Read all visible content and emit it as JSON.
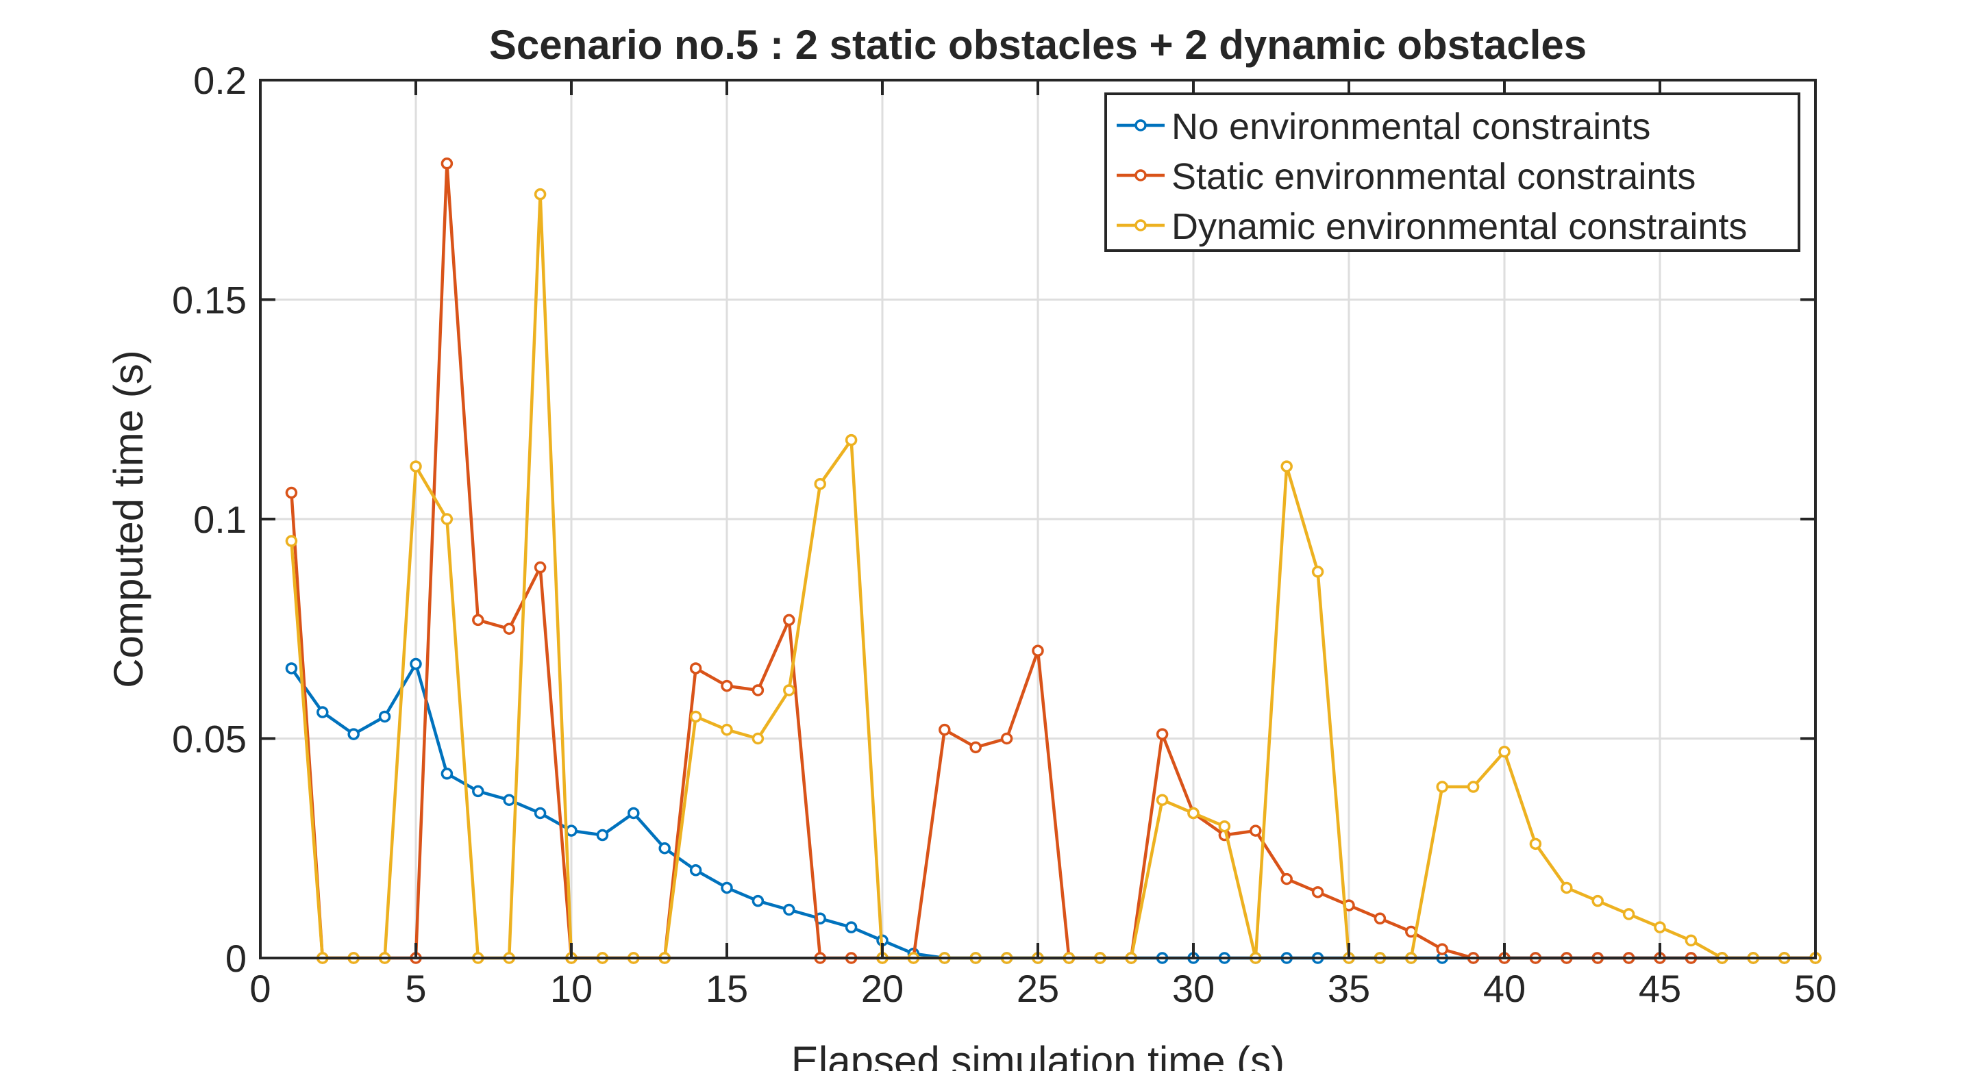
{
  "chart_data": {
    "type": "line",
    "title": "Scenario no.5 : 2 static obstacles + 2 dynamic obstacles",
    "xlabel": "Elapsed simulation time (s)",
    "ylabel": "Computed time (s)",
    "xlim": [
      0,
      50
    ],
    "ylim": [
      0,
      0.2
    ],
    "xticks": [
      0,
      5,
      10,
      15,
      20,
      25,
      30,
      35,
      40,
      45,
      50
    ],
    "xtick_labels": [
      "0",
      "5",
      "10",
      "15",
      "20",
      "25",
      "30",
      "35",
      "40",
      "45",
      "50"
    ],
    "yticks": [
      0,
      0.05,
      0.1,
      0.15,
      0.2
    ],
    "ytick_labels": [
      "0",
      "0.05",
      "0.1",
      "0.15",
      "0.2"
    ],
    "grid": true,
    "legend_position": "top-right",
    "x": [
      1,
      2,
      3,
      4,
      5,
      6,
      7,
      8,
      9,
      10,
      11,
      12,
      13,
      14,
      15,
      16,
      17,
      18,
      19,
      20,
      21,
      22,
      23,
      24,
      25,
      26,
      27,
      28,
      29,
      30,
      31,
      32,
      33,
      34,
      35,
      36,
      37,
      38,
      39,
      40,
      41,
      42,
      43,
      44,
      45,
      46,
      47,
      48,
      49,
      50
    ],
    "series": [
      {
        "name": "No environmental constraints",
        "color": "#0072BD",
        "values": [
          0.066,
          0.056,
          0.051,
          0.055,
          0.067,
          0.042,
          0.038,
          0.036,
          0.033,
          0.029,
          0.028,
          0.033,
          0.025,
          0.02,
          0.016,
          0.013,
          0.011,
          0.009,
          0.007,
          0.004,
          0.001,
          0,
          0,
          0,
          0,
          0,
          0,
          0,
          0,
          0,
          0,
          0,
          0,
          0,
          0,
          0,
          0,
          0,
          0,
          0,
          0,
          0,
          0,
          0,
          0,
          0,
          0,
          0,
          0,
          0
        ]
      },
      {
        "name": "Static environmental constraints",
        "color": "#D95319",
        "values": [
          0.106,
          0,
          0,
          0,
          0,
          0.181,
          0.077,
          0.075,
          0.089,
          0,
          0,
          0,
          0,
          0.066,
          0.062,
          0.061,
          0.077,
          0,
          0,
          0,
          0,
          0.052,
          0.048,
          0.05,
          0.07,
          0,
          0,
          0,
          0.051,
          0.033,
          0.028,
          0.029,
          0.018,
          0.015,
          0.012,
          0.009,
          0.006,
          0.002,
          0,
          0,
          0,
          0,
          0,
          0,
          0,
          0,
          0,
          0,
          0,
          0
        ]
      },
      {
        "name": "Dynamic environmental constraints",
        "color": "#EDB120",
        "values": [
          0.095,
          0,
          0,
          0,
          0.112,
          0.1,
          0,
          0,
          0.174,
          0,
          0,
          0,
          0,
          0.055,
          0.052,
          0.05,
          0.061,
          0.108,
          0.118,
          0,
          0,
          0,
          0,
          0,
          0,
          0,
          0,
          0,
          0.036,
          0.033,
          0.03,
          0,
          0.112,
          0.088,
          0,
          0,
          0,
          0.039,
          0.039,
          0.047,
          0.026,
          0.016,
          0.013,
          0.01,
          0.007,
          0.004,
          0,
          0,
          0,
          0
        ]
      }
    ]
  }
}
